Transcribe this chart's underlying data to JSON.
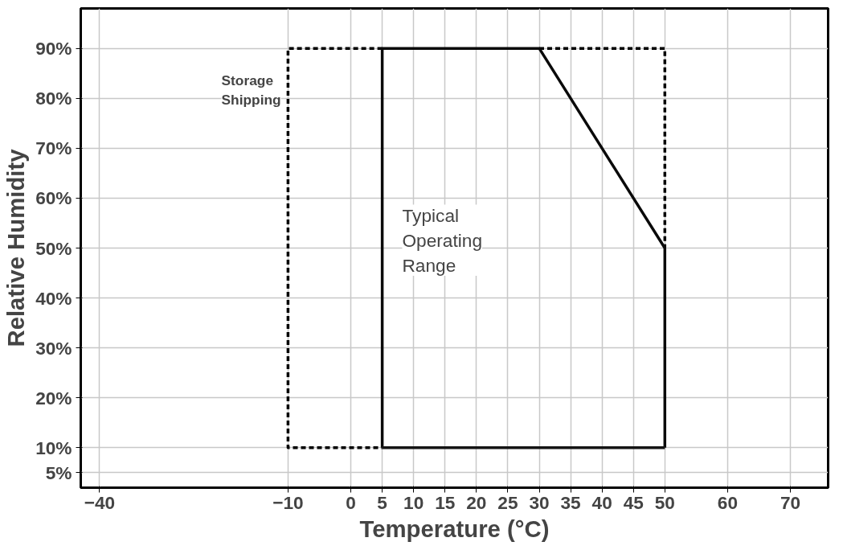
{
  "chart_data": {
    "type": "line",
    "xlabel": "Temperature (°C)",
    "ylabel": "Relative Humidity",
    "series": [
      {
        "color": "#000000",
        "line_style": "dashed",
        "x": [
          5,
          -10,
          -10,
          5,
          null,
          30,
          50,
          50
        ],
        "values": [
          90,
          90,
          10,
          10,
          null,
          90,
          90,
          50
        ]
      },
      {
        "color": "#0a0a0a",
        "line_style": "solid",
        "x": [
          5,
          5,
          30,
          50,
          50
        ],
        "values": [
          10,
          90,
          90,
          50,
          10
        ]
      },
      {
        "color": "#141414",
        "line_style": "solid",
        "x": [
          5,
          50
        ],
        "values": [
          10,
          10
        ]
      }
    ],
    "annotations": [
      "Storage\nShipping",
      "Typical\nOperating\nRange"
    ],
    "xlim": [
      -43,
      76
    ],
    "xticks": [
      -40,
      -10,
      0,
      5,
      10,
      15,
      20,
      25,
      30,
      35,
      40,
      45,
      50,
      60,
      70
    ],
    "ylim": [
      2,
      98
    ],
    "yticks": [
      {
        "value": 5,
        "label": "5%"
      },
      {
        "value": 10,
        "label": "10%"
      },
      {
        "value": 20,
        "label": "20%"
      },
      {
        "value": 30,
        "label": "30%"
      },
      {
        "value": 40,
        "label": "40%"
      },
      {
        "value": 50,
        "label": "50%"
      },
      {
        "value": 60,
        "label": "60%"
      },
      {
        "value": 70,
        "label": "70%"
      },
      {
        "value": 80,
        "label": "80%"
      },
      {
        "value": 90,
        "label": "90%"
      }
    ],
    "grid": true,
    "marker": "none"
  }
}
